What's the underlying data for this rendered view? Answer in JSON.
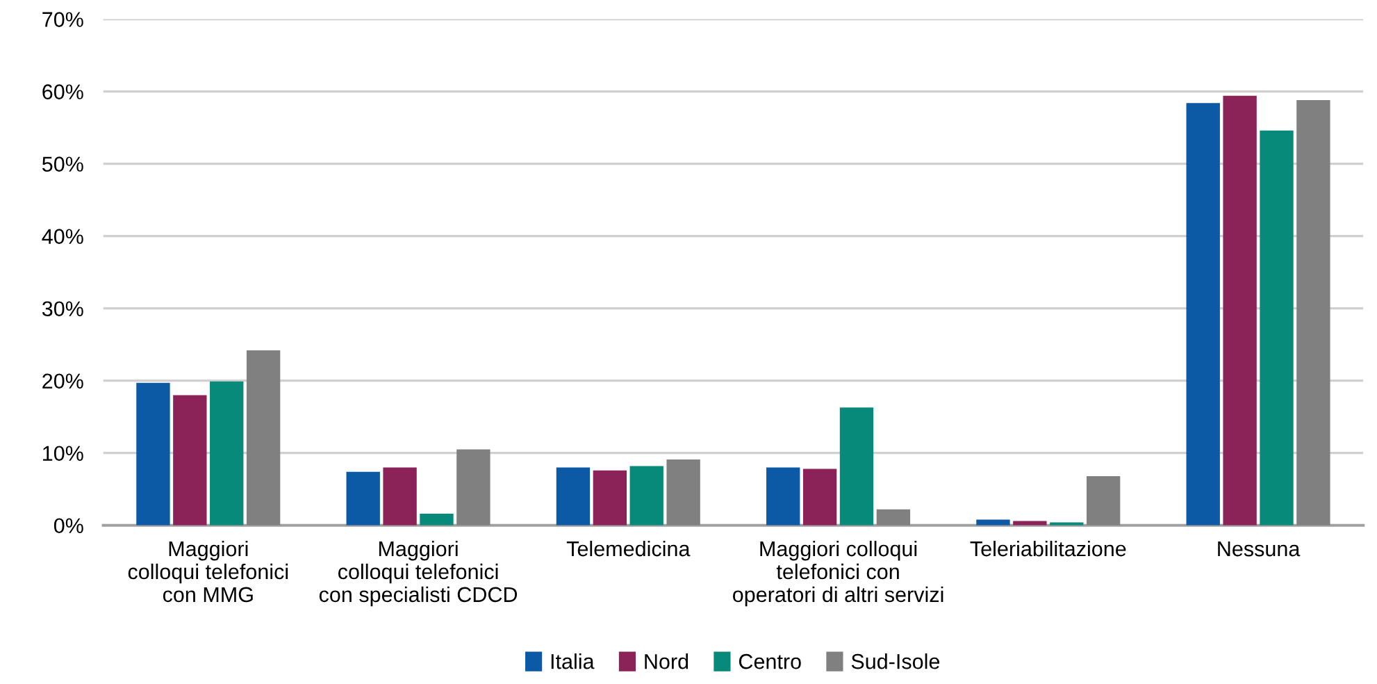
{
  "chart_data": {
    "type": "bar",
    "categories": [
      "Maggiori\ncolloqui telefonici\ncon MMG",
      "Maggiori\ncolloqui telefonici\ncon specialisti CDCD",
      "Telemedicina",
      "Maggiori colloqui\ntelefonici con\noperatori di altri servizi",
      "Teleriabilitazione",
      "Nessuna"
    ],
    "series": [
      {
        "name": "Italia",
        "color": "#0c5aa6",
        "values": [
          19.7,
          7.4,
          8.0,
          8.0,
          0.8,
          58.4
        ]
      },
      {
        "name": "Nord",
        "color": "#8b2359",
        "values": [
          18.0,
          8.0,
          7.6,
          7.8,
          0.6,
          59.4
        ]
      },
      {
        "name": "Centro",
        "color": "#078a7a",
        "values": [
          19.9,
          1.6,
          8.2,
          16.3,
          0.4,
          54.6
        ]
      },
      {
        "name": "Sud-Isole",
        "color": "#808080",
        "values": [
          24.2,
          10.5,
          9.1,
          2.2,
          6.8,
          58.8
        ]
      }
    ],
    "ylim": [
      0,
      70
    ],
    "yticks": [
      {
        "value": 0,
        "label": "0%"
      },
      {
        "value": 10,
        "label": "10%"
      },
      {
        "value": 20,
        "label": "20%"
      },
      {
        "value": 30,
        "label": "30%"
      },
      {
        "value": 40,
        "label": "40%"
      },
      {
        "value": 50,
        "label": "50%"
      },
      {
        "value": 60,
        "label": "60%"
      },
      {
        "value": 70,
        "label": "70%"
      }
    ],
    "grid": "y",
    "legend": "bottom"
  }
}
